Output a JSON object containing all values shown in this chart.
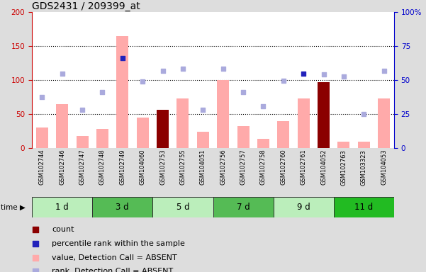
{
  "title": "GDS2431 / 209399_at",
  "samples": [
    "GSM102744",
    "GSM102746",
    "GSM102747",
    "GSM102748",
    "GSM102749",
    "GSM104060",
    "GSM102753",
    "GSM102755",
    "GSM104051",
    "GSM102756",
    "GSM102757",
    "GSM102758",
    "GSM102760",
    "GSM102761",
    "GSM104052",
    "GSM102763",
    "GSM103323",
    "GSM104053"
  ],
  "time_groups": [
    {
      "label": "1 d",
      "start": 0,
      "end": 3,
      "color": "#bbeebb"
    },
    {
      "label": "3 d",
      "start": 3,
      "end": 6,
      "color": "#55bb55"
    },
    {
      "label": "5 d",
      "start": 6,
      "end": 9,
      "color": "#bbeebb"
    },
    {
      "label": "7 d",
      "start": 9,
      "end": 12,
      "color": "#55bb55"
    },
    {
      "label": "9 d",
      "start": 12,
      "end": 15,
      "color": "#bbeebb"
    },
    {
      "label": "11 d",
      "start": 15,
      "end": 18,
      "color": "#22bb22"
    }
  ],
  "bar_values": [
    30,
    65,
    18,
    28,
    165,
    45,
    57,
    73,
    24,
    100,
    33,
    14,
    40,
    73,
    97,
    10,
    10,
    73
  ],
  "bar_colors": [
    "#ffaaaa",
    "#ffaaaa",
    "#ffaaaa",
    "#ffaaaa",
    "#ffaaaa",
    "#ffaaaa",
    "#8b0000",
    "#ffaaaa",
    "#ffaaaa",
    "#ffaaaa",
    "#ffaaaa",
    "#ffaaaa",
    "#ffaaaa",
    "#ffaaaa",
    "#8b0000",
    "#ffaaaa",
    "#ffaaaa",
    "#ffaaaa"
  ],
  "rank_values": [
    75,
    110,
    57,
    83,
    133,
    98,
    114,
    117,
    57,
    117,
    83,
    62,
    99,
    110,
    109,
    105,
    50,
    114
  ],
  "rank_colors": [
    "#aaaadd",
    "#aaaadd",
    "#aaaadd",
    "#aaaadd",
    "#2222bb",
    "#aaaadd",
    "#aaaadd",
    "#aaaadd",
    "#aaaadd",
    "#aaaadd",
    "#aaaadd",
    "#aaaadd",
    "#aaaadd",
    "#2222bb",
    "#aaaadd",
    "#aaaadd",
    "#aaaadd",
    "#aaaadd"
  ],
  "ylim_left": [
    0,
    200
  ],
  "ylim_right": [
    0,
    100
  ],
  "yticks_left": [
    0,
    50,
    100,
    150,
    200
  ],
  "yticks_right": [
    0,
    25,
    50,
    75,
    100
  ],
  "grid_values": [
    50,
    100,
    150
  ],
  "legend_items": [
    {
      "color": "#8b0000",
      "label": "count"
    },
    {
      "color": "#2222bb",
      "label": "percentile rank within the sample"
    },
    {
      "color": "#ffaaaa",
      "label": "value, Detection Call = ABSENT"
    },
    {
      "color": "#aaaadd",
      "label": "rank, Detection Call = ABSENT"
    }
  ],
  "bg_color": "#dddddd",
  "plot_bg": "#ffffff",
  "title_color": "#000000",
  "left_axis_color": "#cc0000",
  "right_axis_color": "#0000cc"
}
